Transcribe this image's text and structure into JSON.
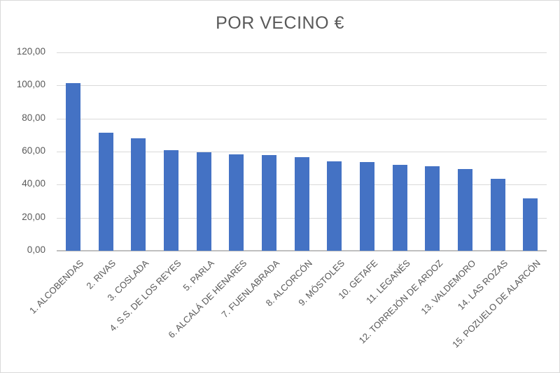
{
  "chart_data": {
    "type": "bar",
    "title": "POR VECINO €",
    "categories": [
      "1. ALCOBENDAS",
      "2. RIVAS",
      "3. COSLADA",
      "4. S.S. DE LOS REYES",
      "5. PARLA",
      "6. ALCALÁ DE HENARES",
      "7. FUENLABRADA",
      "8. ALCORCÓN",
      "9. MÓSTOLES",
      "10. GETAFE",
      "11. LEGANÉS",
      "12. TORREJÓN DE ARDOZ",
      "13. VALDEMORO",
      "14. LAS ROZAS",
      "15. POZUELO DE ALARCÓN"
    ],
    "values": [
      101.5,
      71.5,
      68,
      61,
      59.5,
      58.5,
      58,
      56.5,
      54,
      53.5,
      52,
      51,
      49.5,
      43.5,
      31.5
    ],
    "xlabel": "",
    "ylabel": "",
    "ylim": [
      0,
      120
    ],
    "ytick_values": [
      0,
      20,
      40,
      60,
      80,
      100,
      120
    ],
    "ytick_labels": [
      "0,00",
      "20,00",
      "40,00",
      "60,00",
      "80,00",
      "100,00",
      "120,00"
    ],
    "grid": "horizontal",
    "legend_position": "none",
    "bar_color": "#4472c4",
    "grid_color": "#d9d9d9",
    "axis_color": "#bfbfbf",
    "text_color": "#595959"
  }
}
